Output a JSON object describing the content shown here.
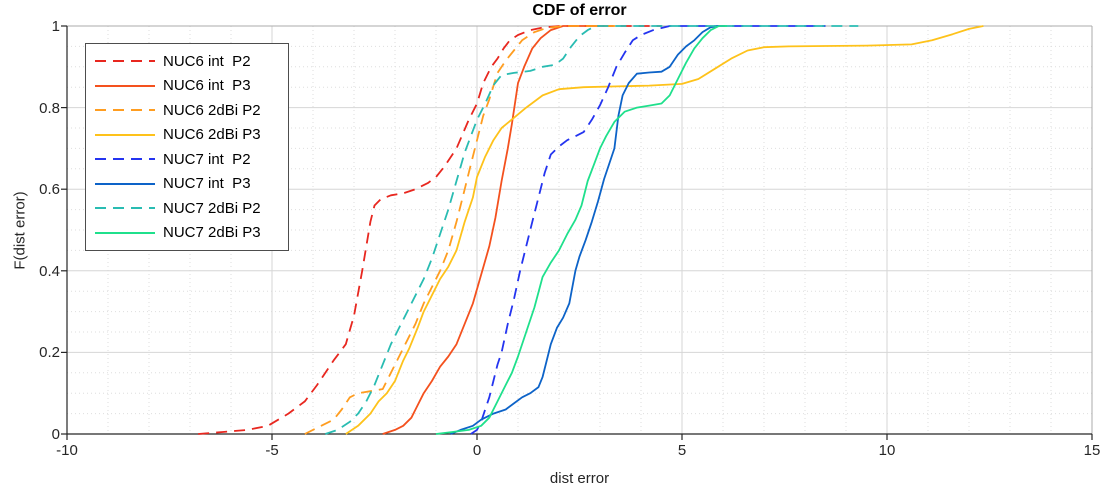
{
  "chart_data": {
    "type": "line",
    "title": "CDF of error",
    "xlabel": "dist error",
    "ylabel": "F(dist error)",
    "xlim": [
      -10,
      15
    ],
    "ylim": [
      0,
      1
    ],
    "x_ticks": [
      -10,
      -5,
      0,
      5,
      10,
      15
    ],
    "x_tick_labels": [
      "-10",
      "-5",
      "0",
      "5",
      "10",
      "15"
    ],
    "y_ticks": [
      0,
      0.2,
      0.4,
      0.6,
      0.8,
      1
    ],
    "y_tick_labels": [
      "0",
      "0.2",
      "0.4",
      "0.6",
      "0.8",
      "1"
    ],
    "grid": {
      "major": true,
      "minor": true,
      "x_minor_step": 1,
      "y_minor_step": 0.05
    },
    "legend_position": "top-left",
    "colors": {
      "major_grid": "#d6d6d6",
      "minor_grid": "#dedede",
      "axis": "#262626",
      "box": "#ababab"
    },
    "series": [
      {
        "name": "NUC6 int  P2",
        "color": "#e8271f",
        "dash": true,
        "points": [
          [
            -6.8,
            0
          ],
          [
            -6.2,
            0.005
          ],
          [
            -5.6,
            0.01
          ],
          [
            -5.1,
            0.02
          ],
          [
            -4.6,
            0.05
          ],
          [
            -4.2,
            0.08
          ],
          [
            -3.9,
            0.12
          ],
          [
            -3.5,
            0.18
          ],
          [
            -3.2,
            0.22
          ],
          [
            -3.0,
            0.29
          ],
          [
            -2.8,
            0.4
          ],
          [
            -2.6,
            0.52
          ],
          [
            -2.5,
            0.56
          ],
          [
            -2.35,
            0.575
          ],
          [
            -2.1,
            0.585
          ],
          [
            -1.8,
            0.59
          ],
          [
            -1.5,
            0.6
          ],
          [
            -1.2,
            0.615
          ],
          [
            -1.0,
            0.63
          ],
          [
            -0.8,
            0.655
          ],
          [
            -0.5,
            0.7
          ],
          [
            -0.2,
            0.77
          ],
          [
            0.0,
            0.81
          ],
          [
            0.15,
            0.86
          ],
          [
            0.35,
            0.9
          ],
          [
            0.5,
            0.92
          ],
          [
            0.65,
            0.945
          ],
          [
            0.8,
            0.965
          ],
          [
            1.0,
            0.978
          ],
          [
            1.3,
            0.99
          ],
          [
            1.6,
            0.996
          ],
          [
            2.0,
            1.0
          ],
          [
            4.5,
            1.0
          ]
        ]
      },
      {
        "name": "NUC6 int  P3",
        "color": "#f4511e",
        "dash": false,
        "points": [
          [
            -2.3,
            0
          ],
          [
            -2.0,
            0.01
          ],
          [
            -1.8,
            0.02
          ],
          [
            -1.6,
            0.04
          ],
          [
            -1.5,
            0.06
          ],
          [
            -1.3,
            0.1
          ],
          [
            -1.1,
            0.13
          ],
          [
            -0.9,
            0.165
          ],
          [
            -0.7,
            0.19
          ],
          [
            -0.5,
            0.22
          ],
          [
            -0.3,
            0.27
          ],
          [
            -0.1,
            0.32
          ],
          [
            0.1,
            0.39
          ],
          [
            0.3,
            0.46
          ],
          [
            0.45,
            0.53
          ],
          [
            0.6,
            0.62
          ],
          [
            0.75,
            0.7
          ],
          [
            0.85,
            0.76
          ],
          [
            1.0,
            0.86
          ],
          [
            1.15,
            0.9
          ],
          [
            1.35,
            0.945
          ],
          [
            1.55,
            0.97
          ],
          [
            1.8,
            0.99
          ],
          [
            2.1,
            1.0
          ],
          [
            3.2,
            1.0
          ]
        ]
      },
      {
        "name": "NUC6 2dBi P2",
        "color": "#ff9d20",
        "dash": true,
        "points": [
          [
            -4.2,
            0
          ],
          [
            -3.8,
            0.02
          ],
          [
            -3.5,
            0.035
          ],
          [
            -3.3,
            0.06
          ],
          [
            -3.1,
            0.09
          ],
          [
            -2.9,
            0.1
          ],
          [
            -2.6,
            0.105
          ],
          [
            -2.3,
            0.11
          ],
          [
            -2.1,
            0.15
          ],
          [
            -1.9,
            0.19
          ],
          [
            -1.7,
            0.23
          ],
          [
            -1.5,
            0.27
          ],
          [
            -1.3,
            0.32
          ],
          [
            -1.1,
            0.36
          ],
          [
            -0.9,
            0.4
          ],
          [
            -0.7,
            0.45
          ],
          [
            -0.5,
            0.52
          ],
          [
            -0.3,
            0.6
          ],
          [
            -0.15,
            0.66
          ],
          [
            0.0,
            0.72
          ],
          [
            0.15,
            0.78
          ],
          [
            0.3,
            0.82
          ],
          [
            0.5,
            0.885
          ],
          [
            0.7,
            0.915
          ],
          [
            0.9,
            0.94
          ],
          [
            1.1,
            0.965
          ],
          [
            1.4,
            0.985
          ],
          [
            1.7,
            0.995
          ],
          [
            2.1,
            1.0
          ],
          [
            3.4,
            1.0
          ]
        ]
      },
      {
        "name": "NUC6 2dBi P3",
        "color": "#fec21a",
        "dash": false,
        "points": [
          [
            -3.2,
            0
          ],
          [
            -2.9,
            0.02
          ],
          [
            -2.6,
            0.05
          ],
          [
            -2.4,
            0.08
          ],
          [
            -2.2,
            0.1
          ],
          [
            -2.0,
            0.13
          ],
          [
            -1.8,
            0.18
          ],
          [
            -1.65,
            0.21
          ],
          [
            -1.45,
            0.26
          ],
          [
            -1.3,
            0.3
          ],
          [
            -1.1,
            0.34
          ],
          [
            -0.9,
            0.38
          ],
          [
            -0.7,
            0.41
          ],
          [
            -0.5,
            0.45
          ],
          [
            -0.3,
            0.52
          ],
          [
            -0.1,
            0.58
          ],
          [
            0.0,
            0.63
          ],
          [
            0.2,
            0.68
          ],
          [
            0.4,
            0.72
          ],
          [
            0.6,
            0.75
          ],
          [
            0.9,
            0.775
          ],
          [
            1.2,
            0.8
          ],
          [
            1.6,
            0.83
          ],
          [
            2.0,
            0.845
          ],
          [
            2.6,
            0.85
          ],
          [
            3.4,
            0.852
          ],
          [
            4.2,
            0.854
          ],
          [
            5.0,
            0.858
          ],
          [
            5.4,
            0.87
          ],
          [
            5.8,
            0.895
          ],
          [
            6.2,
            0.92
          ],
          [
            6.6,
            0.94
          ],
          [
            7.0,
            0.948
          ],
          [
            7.6,
            0.95
          ],
          [
            8.5,
            0.951
          ],
          [
            9.5,
            0.952
          ],
          [
            10.6,
            0.955
          ],
          [
            11.1,
            0.965
          ],
          [
            11.6,
            0.98
          ],
          [
            12.0,
            0.993
          ],
          [
            12.35,
            1.0
          ]
        ]
      },
      {
        "name": "NUC7 int  P2",
        "color": "#2434f0",
        "dash": true,
        "points": [
          [
            -0.15,
            0
          ],
          [
            0.0,
            0.01
          ],
          [
            0.1,
            0.03
          ],
          [
            0.2,
            0.06
          ],
          [
            0.3,
            0.09
          ],
          [
            0.4,
            0.13
          ],
          [
            0.5,
            0.17
          ],
          [
            0.6,
            0.2
          ],
          [
            0.75,
            0.27
          ],
          [
            0.9,
            0.33
          ],
          [
            1.05,
            0.4
          ],
          [
            1.2,
            0.46
          ],
          [
            1.35,
            0.52
          ],
          [
            1.5,
            0.58
          ],
          [
            1.65,
            0.64
          ],
          [
            1.8,
            0.685
          ],
          [
            2.0,
            0.705
          ],
          [
            2.2,
            0.72
          ],
          [
            2.4,
            0.73
          ],
          [
            2.6,
            0.74
          ],
          [
            2.8,
            0.77
          ],
          [
            3.0,
            0.806
          ],
          [
            3.2,
            0.85
          ],
          [
            3.4,
            0.9
          ],
          [
            3.6,
            0.934
          ],
          [
            3.8,
            0.965
          ],
          [
            4.0,
            0.978
          ],
          [
            4.3,
            0.99
          ],
          [
            4.7,
            1.0
          ],
          [
            8.5,
            1.0
          ]
        ]
      },
      {
        "name": "NUC7 int  P3",
        "color": "#0d63c8",
        "dash": false,
        "points": [
          [
            -0.65,
            0
          ],
          [
            -0.4,
            0.01
          ],
          [
            -0.1,
            0.02
          ],
          [
            0.1,
            0.035
          ],
          [
            0.4,
            0.05
          ],
          [
            0.7,
            0.06
          ],
          [
            0.9,
            0.075
          ],
          [
            1.1,
            0.09
          ],
          [
            1.3,
            0.1
          ],
          [
            1.5,
            0.115
          ],
          [
            1.6,
            0.14
          ],
          [
            1.7,
            0.18
          ],
          [
            1.8,
            0.22
          ],
          [
            1.95,
            0.26
          ],
          [
            2.1,
            0.285
          ],
          [
            2.25,
            0.32
          ],
          [
            2.4,
            0.4
          ],
          [
            2.5,
            0.435
          ],
          [
            2.65,
            0.475
          ],
          [
            2.8,
            0.52
          ],
          [
            2.95,
            0.57
          ],
          [
            3.1,
            0.625
          ],
          [
            3.25,
            0.67
          ],
          [
            3.35,
            0.7
          ],
          [
            3.45,
            0.78
          ],
          [
            3.55,
            0.83
          ],
          [
            3.7,
            0.86
          ],
          [
            3.9,
            0.883
          ],
          [
            4.2,
            0.886
          ],
          [
            4.5,
            0.888
          ],
          [
            4.7,
            0.9
          ],
          [
            4.9,
            0.93
          ],
          [
            5.1,
            0.95
          ],
          [
            5.3,
            0.965
          ],
          [
            5.5,
            0.985
          ],
          [
            5.7,
            0.997
          ],
          [
            5.9,
            1.0
          ]
        ]
      },
      {
        "name": "NUC7 2dBi P2",
        "color": "#29bcb2",
        "dash": true,
        "points": [
          [
            -3.7,
            0
          ],
          [
            -3.4,
            0.01
          ],
          [
            -3.1,
            0.03
          ],
          [
            -2.9,
            0.05
          ],
          [
            -2.7,
            0.08
          ],
          [
            -2.5,
            0.12
          ],
          [
            -2.3,
            0.17
          ],
          [
            -2.1,
            0.22
          ],
          [
            -1.9,
            0.26
          ],
          [
            -1.7,
            0.3
          ],
          [
            -1.5,
            0.34
          ],
          [
            -1.3,
            0.38
          ],
          [
            -1.1,
            0.43
          ],
          [
            -0.9,
            0.49
          ],
          [
            -0.7,
            0.55
          ],
          [
            -0.5,
            0.62
          ],
          [
            -0.3,
            0.69
          ],
          [
            -0.15,
            0.73
          ],
          [
            0.0,
            0.77
          ],
          [
            0.2,
            0.81
          ],
          [
            0.4,
            0.855
          ],
          [
            0.6,
            0.88
          ],
          [
            0.9,
            0.885
          ],
          [
            1.3,
            0.89
          ],
          [
            1.6,
            0.9
          ],
          [
            1.9,
            0.905
          ],
          [
            2.1,
            0.92
          ],
          [
            2.3,
            0.95
          ],
          [
            2.5,
            0.975
          ],
          [
            2.7,
            0.99
          ],
          [
            2.9,
            1.0
          ],
          [
            9.3,
            1.0
          ]
        ]
      },
      {
        "name": "NUC7 2dBi P3",
        "color": "#1fe08c",
        "dash": false,
        "points": [
          [
            -1.0,
            0
          ],
          [
            -0.6,
            0.005
          ],
          [
            -0.2,
            0.01
          ],
          [
            0.1,
            0.02
          ],
          [
            0.3,
            0.04
          ],
          [
            0.5,
            0.08
          ],
          [
            0.7,
            0.12
          ],
          [
            0.85,
            0.15
          ],
          [
            1.0,
            0.19
          ],
          [
            1.2,
            0.25
          ],
          [
            1.4,
            0.31
          ],
          [
            1.6,
            0.385
          ],
          [
            1.8,
            0.42
          ],
          [
            2.0,
            0.45
          ],
          [
            2.2,
            0.49
          ],
          [
            2.4,
            0.525
          ],
          [
            2.55,
            0.56
          ],
          [
            2.7,
            0.62
          ],
          [
            2.85,
            0.66
          ],
          [
            3.0,
            0.7
          ],
          [
            3.15,
            0.73
          ],
          [
            3.35,
            0.765
          ],
          [
            3.6,
            0.79
          ],
          [
            3.9,
            0.8
          ],
          [
            4.2,
            0.805
          ],
          [
            4.5,
            0.81
          ],
          [
            4.7,
            0.83
          ],
          [
            4.9,
            0.87
          ],
          [
            5.1,
            0.91
          ],
          [
            5.3,
            0.945
          ],
          [
            5.5,
            0.97
          ],
          [
            5.7,
            0.99
          ],
          [
            5.9,
            1.0
          ],
          [
            6.1,
            1.0
          ]
        ]
      }
    ]
  }
}
